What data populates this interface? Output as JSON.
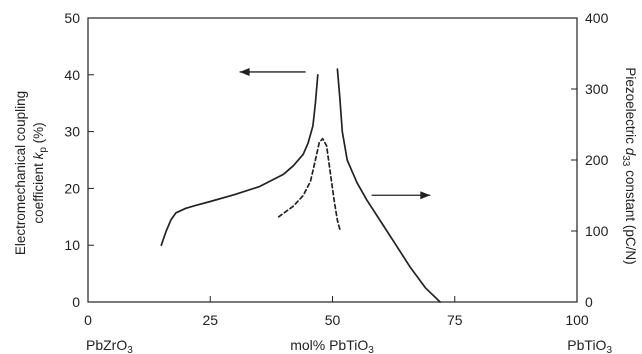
{
  "chart_data": {
    "type": "line",
    "xlim": [
      0,
      100
    ],
    "ylim_left": [
      0,
      50
    ],
    "ylim_right": [
      0,
      400
    ],
    "x_ticks": [
      "0",
      "25",
      "50",
      "75",
      "100"
    ],
    "y_left_ticks": [
      "0",
      "10",
      "20",
      "30",
      "40",
      "50"
    ],
    "y_right_ticks": [
      "0",
      "100",
      "200",
      "300",
      "400"
    ],
    "ylabel_left_line1": "Electromechanical coupling",
    "ylabel_left_line2_prefix": "coefficient ",
    "ylabel_left_var": "k",
    "ylabel_left_sub": "p",
    "ylabel_left_suffix": " (%)",
    "ylabel_right_prefix": "Piezoelectric ",
    "ylabel_right_var": "d",
    "ylabel_right_sub": "33",
    "ylabel_right_suffix": " constant (pC/N)",
    "x_label_left_main": "PbZrO",
    "x_label_left_sub": "3",
    "x_label_center_main": "mol% PbTiO",
    "x_label_center_sub": "3",
    "x_label_right_main": "PbTiO",
    "x_label_right_sub": "3",
    "series": [
      {
        "axis": "left",
        "style": "solid",
        "x": [
          15,
          16,
          17,
          18,
          20,
          22,
          25,
          30,
          35,
          40,
          42,
          44,
          45,
          46,
          46.5,
          47
        ],
        "y": [
          10,
          12.5,
          14.5,
          15.7,
          16.5,
          17.0,
          17.7,
          18.9,
          20.3,
          22.5,
          24.0,
          26.0,
          28.0,
          31.0,
          35.0,
          40.0
        ]
      },
      {
        "axis": "left",
        "style": "solid",
        "x": [
          51,
          51.5,
          52,
          53,
          54,
          55,
          57,
          60,
          63,
          66,
          69,
          72
        ],
        "y": [
          41.0,
          36.0,
          30.0,
          25.0,
          23.0,
          21.0,
          18.0,
          14.0,
          10.0,
          6.0,
          2.5,
          0.0
        ]
      },
      {
        "axis": "right",
        "style": "dashed",
        "x": [
          39,
          42,
          44,
          45.5,
          46.5,
          47.3,
          48,
          48.8,
          49.6,
          50.4,
          51,
          51.6
        ],
        "y": [
          120,
          135,
          150,
          170,
          200,
          225,
          230,
          220,
          180,
          140,
          115,
          100
        ]
      }
    ],
    "arrows": [
      {
        "points_to": "left",
        "x_from": 44.5,
        "x_to": 31,
        "y_left": 40.5
      },
      {
        "points_to": "right",
        "x_from": 58,
        "x_to": 70,
        "y_left": 18.8
      }
    ],
    "grid": false
  }
}
